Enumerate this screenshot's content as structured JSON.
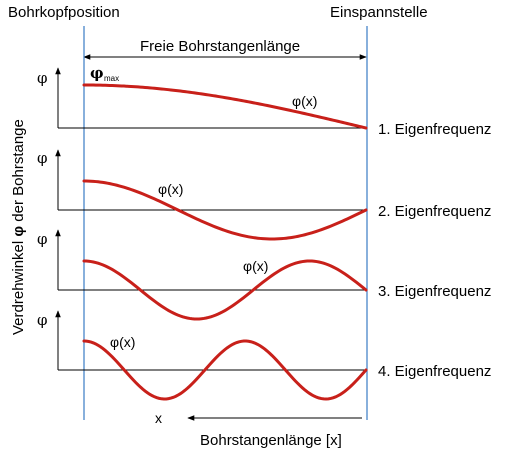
{
  "labels": {
    "left_top": "Bohrkopfposition",
    "right_top": "Einspannstelle",
    "span": "Freie Bohrstangenlänge",
    "y_axis": "Verdrehwinkel",
    "y_axis_symbol": "φ",
    "y_axis_suffix": "der Bohrstange",
    "x_axis": "Bohrstangenlänge [x]",
    "x_small": "x",
    "phi": "φ",
    "phi_max": "φ",
    "phi_max_sub": "max"
  },
  "modes": [
    {
      "label": "1. Eigenfrequenz",
      "curve_label": "φ(x)",
      "n": 1
    },
    {
      "label": "2. Eigenfrequenz",
      "curve_label": "φ(x)",
      "n": 2
    },
    {
      "label": "3. Eigenfrequenz",
      "curve_label": "φ(x)",
      "n": 3
    },
    {
      "label": "4. Eigenfrequenz",
      "curve_label": "φ(x)",
      "n": 4
    }
  ],
  "colors": {
    "curve": "#c8201a",
    "boundary": "#3a7cc4",
    "axis": "#000000"
  }
}
